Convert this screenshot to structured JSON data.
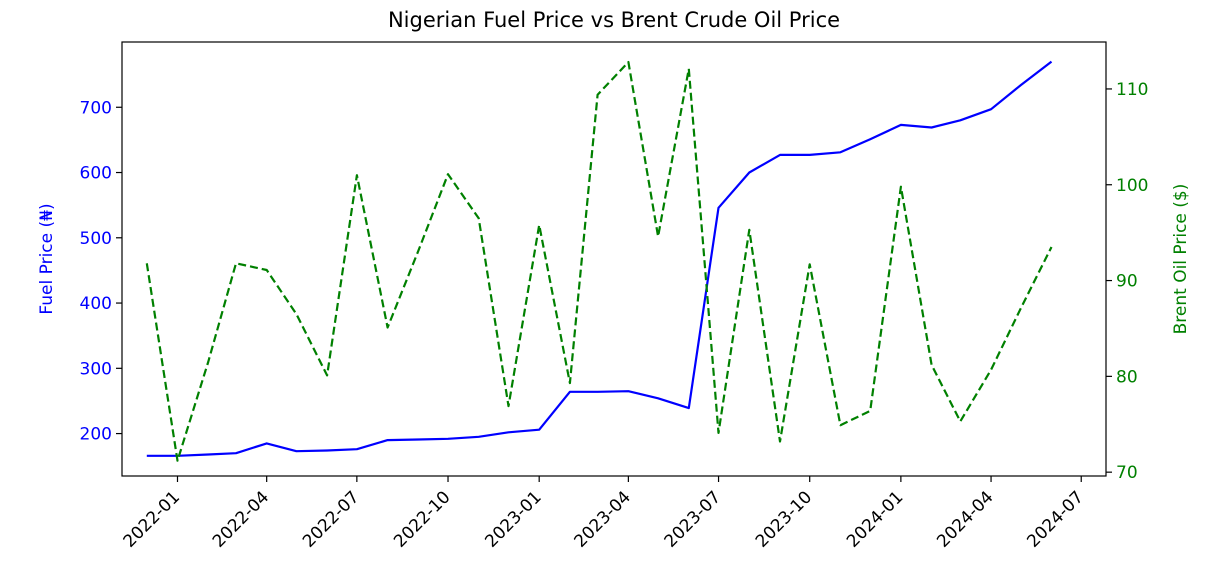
{
  "chart_data": {
    "type": "line",
    "title": "Nigerian Fuel Price vs Brent Crude Oil Price",
    "xlabel": "",
    "y_left_label": "Fuel Price (₦)",
    "y_right_label": "Brent Oil Price ($)",
    "x_ticks": [
      "2022-01",
      "2022-04",
      "2022-07",
      "2022-10",
      "2023-01",
      "2023-04",
      "2023-07",
      "2023-10",
      "2024-01",
      "2024-04",
      "2024-07"
    ],
    "x_range": [
      "2021-11-06",
      "2024-07-26"
    ],
    "y_left_ticks": [
      200,
      300,
      400,
      500,
      600,
      700
    ],
    "y_left_range": [
      135,
      800
    ],
    "y_right_ticks": [
      70,
      80,
      90,
      100,
      110
    ],
    "y_right_range": [
      69.6,
      114.9
    ],
    "grid": false,
    "colors": {
      "fuel": "#0000ff",
      "brent": "#008000",
      "axis": "#000000"
    },
    "x": [
      "2021-12-01",
      "2022-01-01",
      "2022-02-01",
      "2022-03-01",
      "2022-04-01",
      "2022-05-01",
      "2022-06-01",
      "2022-07-01",
      "2022-08-01",
      "2022-09-01",
      "2022-10-01",
      "2022-11-01",
      "2022-12-01",
      "2023-01-01",
      "2023-02-01",
      "2023-03-01",
      "2023-04-01",
      "2023-05-01",
      "2023-06-01",
      "2023-07-01",
      "2023-08-01",
      "2023-09-01",
      "2023-10-01",
      "2023-11-01",
      "2023-12-01",
      "2024-01-01",
      "2024-02-01",
      "2024-03-01",
      "2024-04-01",
      "2024-05-01",
      "2024-06-01"
    ],
    "series": [
      {
        "axis": "left",
        "style": "solid",
        "values": [
          166,
          166,
          168,
          170,
          185,
          173,
          174,
          176,
          190,
          191,
          192,
          195,
          202,
          206,
          264,
          264,
          265,
          254,
          239,
          546,
          600,
          627,
          627,
          631,
          651,
          673,
          669,
          680,
          697,
          734,
          770
        ]
      },
      {
        "axis": "right",
        "style": "dashed",
        "values": [
          91.8,
          71.2,
          81.5,
          91.8,
          91.1,
          86.5,
          80.1,
          101.0,
          85.1,
          93.1,
          101.1,
          96.5,
          76.9,
          95.8,
          79.3,
          109.4,
          112.8,
          94.6,
          112.1,
          74.1,
          95.3,
          73.2,
          91.7,
          74.9,
          76.4,
          99.8,
          81.2,
          75.3,
          80.7,
          87.1,
          93.5
        ]
      }
    ]
  }
}
